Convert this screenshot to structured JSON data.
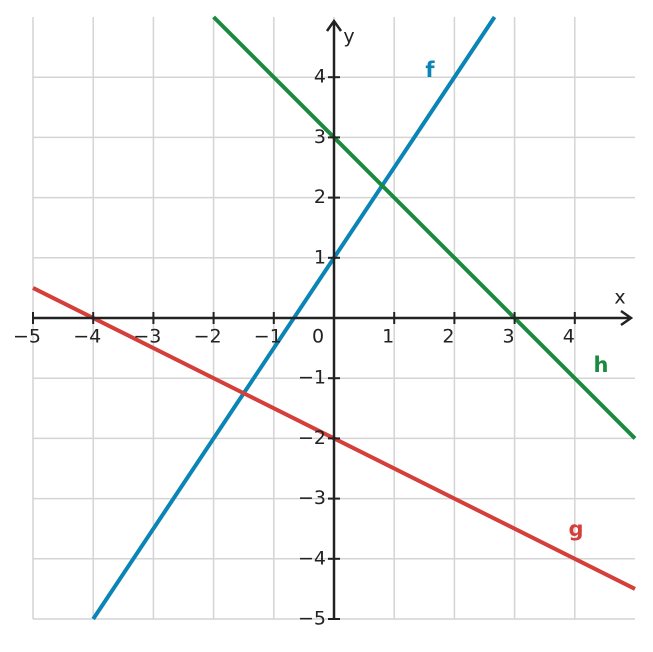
{
  "chart_data": {
    "type": "line",
    "xlabel": "x",
    "ylabel": "y",
    "xlim": [
      -5,
      5
    ],
    "ylim": [
      -5,
      5
    ],
    "xticks": [
      {
        "value": -5,
        "label": "−5"
      },
      {
        "value": -4,
        "label": "−4"
      },
      {
        "value": -3,
        "label": "−3"
      },
      {
        "value": -2,
        "label": "−2"
      },
      {
        "value": -1,
        "label": "−1"
      },
      0,
      1,
      2,
      3,
      4
    ],
    "yticks": [
      {
        "value": -5,
        "label": "−5"
      },
      {
        "value": -4,
        "label": "−4"
      },
      {
        "value": -3,
        "label": "−3"
      },
      {
        "value": -2,
        "label": "−2"
      },
      {
        "value": -1,
        "label": "−1"
      },
      1,
      2,
      3,
      4
    ],
    "grid": true,
    "series": [
      {
        "name": "f",
        "color": "#0a85b5",
        "x": [
          -4,
          2.667
        ],
        "values": [
          -5,
          5
        ]
      },
      {
        "name": "g",
        "color": "#d43f3a",
        "x": [
          -5,
          5
        ],
        "values": [
          0.5,
          -4.5
        ]
      },
      {
        "name": "h",
        "color": "#1a8a3e",
        "x": [
          -2,
          5
        ],
        "values": [
          5,
          -2
        ]
      }
    ]
  }
}
